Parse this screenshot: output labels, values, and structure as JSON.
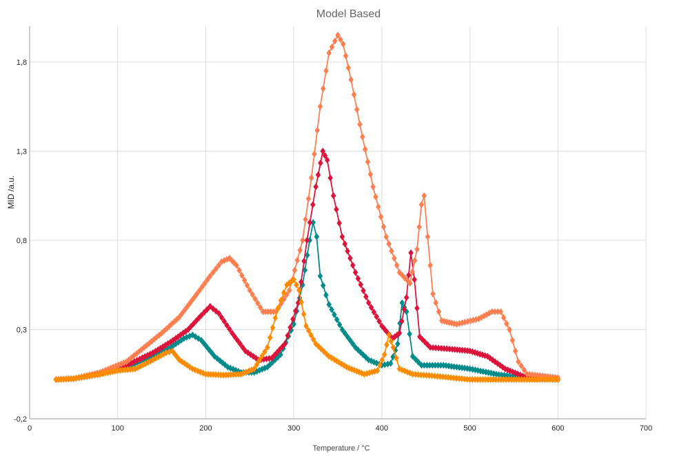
{
  "chart_data": {
    "type": "scatter",
    "title": "Model Based",
    "xlabel": "Temperature / °C",
    "ylabel": "MID /a.u.",
    "xlim": [
      0,
      700
    ],
    "ylim": [
      -0.2,
      2.0
    ],
    "xticks": [
      "0",
      "100",
      "200",
      "300",
      "400",
      "500",
      "600",
      "700"
    ],
    "yticks": [
      "-0,2",
      "0,3",
      "0,8",
      "1,3",
      "1,8"
    ],
    "xtick_values": [
      0,
      100,
      200,
      300,
      400,
      500,
      600,
      700
    ],
    "ytick_values": [
      -0.2,
      0.3,
      0.8,
      1.3,
      1.8
    ],
    "grid": true,
    "marker": "diamond",
    "series": [
      {
        "color": "#008B8B",
        "points": [
          [
            30,
            0.02
          ],
          [
            50,
            0.025
          ],
          [
            80,
            0.05
          ],
          [
            110,
            0.09
          ],
          [
            140,
            0.15
          ],
          [
            160,
            0.2
          ],
          [
            175,
            0.25
          ],
          [
            185,
            0.27
          ],
          [
            195,
            0.24
          ],
          [
            210,
            0.15
          ],
          [
            225,
            0.09
          ],
          [
            240,
            0.06
          ],
          [
            255,
            0.06
          ],
          [
            270,
            0.09
          ],
          [
            285,
            0.16
          ],
          [
            300,
            0.33
          ],
          [
            310,
            0.55
          ],
          [
            318,
            0.8
          ],
          [
            322,
            0.9
          ],
          [
            326,
            0.82
          ],
          [
            330,
            0.6
          ],
          [
            340,
            0.44
          ],
          [
            355,
            0.3
          ],
          [
            370,
            0.2
          ],
          [
            385,
            0.13
          ],
          [
            400,
            0.1
          ],
          [
            410,
            0.11
          ],
          [
            418,
            0.22
          ],
          [
            423,
            0.45
          ],
          [
            428,
            0.4
          ],
          [
            435,
            0.15
          ],
          [
            445,
            0.1
          ],
          [
            470,
            0.1
          ],
          [
            500,
            0.08
          ],
          [
            530,
            0.05
          ],
          [
            560,
            0.03
          ],
          [
            600,
            0.02
          ]
        ]
      },
      {
        "color": "#DC143C",
        "points": [
          [
            30,
            0.02
          ],
          [
            50,
            0.025
          ],
          [
            80,
            0.05
          ],
          [
            110,
            0.1
          ],
          [
            140,
            0.17
          ],
          [
            160,
            0.23
          ],
          [
            180,
            0.3
          ],
          [
            195,
            0.38
          ],
          [
            205,
            0.43
          ],
          [
            215,
            0.39
          ],
          [
            230,
            0.28
          ],
          [
            245,
            0.18
          ],
          [
            260,
            0.13
          ],
          [
            275,
            0.14
          ],
          [
            290,
            0.22
          ],
          [
            305,
            0.45
          ],
          [
            315,
            0.8
          ],
          [
            325,
            1.1
          ],
          [
            333,
            1.3
          ],
          [
            338,
            1.25
          ],
          [
            345,
            1.05
          ],
          [
            355,
            0.82
          ],
          [
            370,
            0.62
          ],
          [
            385,
            0.45
          ],
          [
            400,
            0.32
          ],
          [
            412,
            0.25
          ],
          [
            420,
            0.28
          ],
          [
            428,
            0.48
          ],
          [
            433,
            0.73
          ],
          [
            437,
            0.58
          ],
          [
            443,
            0.26
          ],
          [
            455,
            0.2
          ],
          [
            480,
            0.19
          ],
          [
            500,
            0.18
          ],
          [
            520,
            0.15
          ],
          [
            540,
            0.08
          ],
          [
            560,
            0.04
          ],
          [
            600,
            0.02
          ]
        ]
      },
      {
        "color": "#FF7F50",
        "points": [
          [
            30,
            0.02
          ],
          [
            50,
            0.025
          ],
          [
            80,
            0.06
          ],
          [
            110,
            0.12
          ],
          [
            130,
            0.2
          ],
          [
            150,
            0.28
          ],
          [
            170,
            0.37
          ],
          [
            190,
            0.5
          ],
          [
            205,
            0.6
          ],
          [
            218,
            0.68
          ],
          [
            227,
            0.7
          ],
          [
            235,
            0.66
          ],
          [
            250,
            0.52
          ],
          [
            265,
            0.4
          ],
          [
            280,
            0.4
          ],
          [
            295,
            0.52
          ],
          [
            310,
            0.8
          ],
          [
            320,
            1.15
          ],
          [
            330,
            1.55
          ],
          [
            340,
            1.85
          ],
          [
            350,
            1.95
          ],
          [
            356,
            1.9
          ],
          [
            365,
            1.7
          ],
          [
            375,
            1.45
          ],
          [
            390,
            1.1
          ],
          [
            405,
            0.82
          ],
          [
            420,
            0.62
          ],
          [
            432,
            0.56
          ],
          [
            440,
            0.75
          ],
          [
            445,
            1.0
          ],
          [
            448,
            1.05
          ],
          [
            452,
            0.82
          ],
          [
            458,
            0.5
          ],
          [
            468,
            0.35
          ],
          [
            485,
            0.33
          ],
          [
            510,
            0.36
          ],
          [
            525,
            0.4
          ],
          [
            535,
            0.4
          ],
          [
            545,
            0.3
          ],
          [
            555,
            0.12
          ],
          [
            565,
            0.05
          ],
          [
            600,
            0.03
          ]
        ]
      },
      {
        "color": "#FF8C00",
        "points": [
          [
            30,
            0.02
          ],
          [
            50,
            0.025
          ],
          [
            80,
            0.05
          ],
          [
            100,
            0.07
          ],
          [
            120,
            0.08
          ],
          [
            140,
            0.13
          ],
          [
            155,
            0.17
          ],
          [
            162,
            0.18
          ],
          [
            170,
            0.13
          ],
          [
            185,
            0.08
          ],
          [
            200,
            0.05
          ],
          [
            220,
            0.045
          ],
          [
            240,
            0.05
          ],
          [
            255,
            0.08
          ],
          [
            270,
            0.2
          ],
          [
            282,
            0.42
          ],
          [
            292,
            0.55
          ],
          [
            300,
            0.58
          ],
          [
            306,
            0.52
          ],
          [
            314,
            0.32
          ],
          [
            325,
            0.22
          ],
          [
            340,
            0.15
          ],
          [
            360,
            0.09
          ],
          [
            380,
            0.05
          ],
          [
            395,
            0.07
          ],
          [
            403,
            0.16
          ],
          [
            408,
            0.27
          ],
          [
            413,
            0.2
          ],
          [
            420,
            0.08
          ],
          [
            435,
            0.05
          ],
          [
            460,
            0.04
          ],
          [
            500,
            0.02
          ],
          [
            550,
            0.02
          ],
          [
            600,
            0.02
          ]
        ]
      }
    ]
  }
}
